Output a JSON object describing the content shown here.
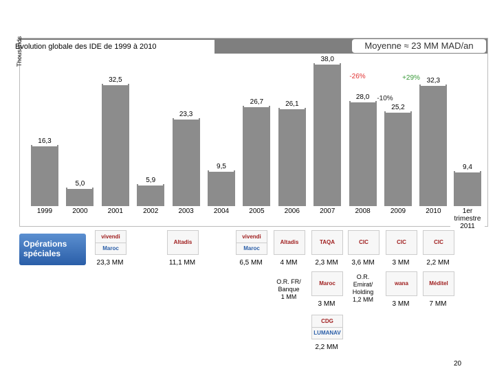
{
  "chart_data": {
    "type": "bar",
    "title": "Evolution globale des IDE  de 1999 à 2010",
    "subtitle": "Moyenne ≈ 23 MM MAD/an",
    "y_label": "Thousands",
    "categories": [
      "1999",
      "2000",
      "2001",
      "2002",
      "2003",
      "2004",
      "2005",
      "2006",
      "2007",
      "2008",
      "2009",
      "2010",
      "1er trimestre 2011"
    ],
    "values": [
      16.3,
      5.0,
      32.5,
      5.9,
      23.3,
      9.5,
      26.7,
      26.1,
      38.0,
      28.0,
      25.2,
      32.3,
      9.4
    ],
    "value_labels": [
      "16,3",
      "5,0",
      "32,5",
      "5,9",
      "23,3",
      "9,5",
      "26,7",
      "26,1",
      "38,0",
      "28,0",
      "25,2",
      "32,3",
      "9,4"
    ],
    "color": "#8c8c8c",
    "ylim": [
      0,
      38
    ],
    "annotations": [
      {
        "text": "-26%",
        "color": "#e03030"
      },
      {
        "text": "+29%",
        "color": "#3a9a3a"
      },
      {
        "text": "-10%",
        "color": "#202020"
      }
    ]
  },
  "operations": {
    "title": "Opérations spéciales",
    "items": [
      {
        "logo": "vivendi",
        "logo2": "Maroc Telecom",
        "amount": "23,3 MM"
      },
      {
        "logo": "Altadis",
        "amount": "11,1 MM"
      },
      {
        "logo": "vivendi",
        "logo2": "Maroc Telecom",
        "amount": "6,5 MM"
      },
      {
        "logo": "Altadis",
        "amount": "4 MM"
      },
      {
        "logo": "TAQA",
        "amount": "2,3 MM"
      },
      {
        "logo": "CIC",
        "amount": "3,6 MM"
      },
      {
        "logo": "CIC",
        "amount": "3 MM"
      },
      {
        "logo": "CIC",
        "amount": "2,2 MM"
      },
      {
        "note": "O.R. FR/\nBanque\n1 MM"
      },
      {
        "logo": "Maroc Telecom",
        "amount": "3 MM"
      },
      {
        "note": "O.R.\nEmirat/\nHolding\n1,2 MM"
      },
      {
        "logo": "wana",
        "amount": "3 MM"
      },
      {
        "logo": "Méditel",
        "amount": "7 MM"
      },
      {
        "logo": "CDG",
        "logo2": "LUMANAV",
        "amount": "2,2 MM"
      }
    ]
  },
  "page_number": "20"
}
